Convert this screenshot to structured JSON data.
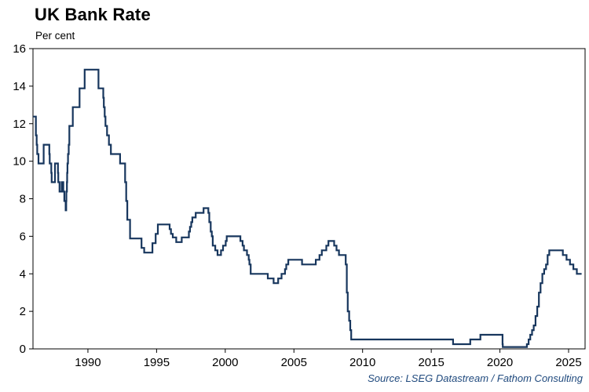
{
  "header": {
    "title": "UK Bank Rate",
    "subtitle": "Per cent"
  },
  "footer": {
    "source": "Source: LSEG Datastream / Fathom Consulting"
  },
  "colors": {
    "line": "#17365D",
    "axis": "#000000",
    "tick_label": "#000000",
    "source_text": "#1F497D",
    "background": "#FFFFFF"
  },
  "chart_data": {
    "type": "line",
    "title": "UK Bank Rate",
    "subtitle": "Per cent",
    "xlabel": "",
    "ylabel": "Per cent",
    "source": "Source: LSEG Datastream / Fathom Consulting",
    "grid": false,
    "legend": "none",
    "step": true,
    "xlim": [
      1986.0,
      2026.2
    ],
    "ylim": [
      0,
      16
    ],
    "yticks": [
      0,
      2,
      4,
      6,
      8,
      10,
      12,
      14,
      16
    ],
    "xticks": [
      1990,
      1995,
      2000,
      2005,
      2010,
      2015,
      2020,
      2025
    ],
    "x_end": 2025.95,
    "series": [
      {
        "name": "UK Bank Rate",
        "points": [
          [
            1986.0,
            12.38
          ],
          [
            1986.21,
            11.38
          ],
          [
            1986.27,
            10.88
          ],
          [
            1986.31,
            10.38
          ],
          [
            1986.4,
            9.88
          ],
          [
            1986.78,
            10.88
          ],
          [
            1987.19,
            10.38
          ],
          [
            1987.22,
            9.88
          ],
          [
            1987.33,
            9.38
          ],
          [
            1987.36,
            8.88
          ],
          [
            1987.6,
            9.88
          ],
          [
            1987.82,
            9.38
          ],
          [
            1987.84,
            8.88
          ],
          [
            1987.93,
            8.38
          ],
          [
            1988.09,
            8.88
          ],
          [
            1988.21,
            8.38
          ],
          [
            1988.28,
            7.88
          ],
          [
            1988.38,
            7.38
          ],
          [
            1988.42,
            7.88
          ],
          [
            1988.43,
            8.38
          ],
          [
            1988.47,
            8.88
          ],
          [
            1988.49,
            9.38
          ],
          [
            1988.51,
            9.88
          ],
          [
            1988.55,
            10.38
          ],
          [
            1988.6,
            10.88
          ],
          [
            1988.65,
            11.88
          ],
          [
            1988.9,
            12.88
          ],
          [
            1989.39,
            13.88
          ],
          [
            1989.76,
            14.88
          ],
          [
            1990.77,
            13.88
          ],
          [
            1991.12,
            13.38
          ],
          [
            1991.16,
            12.88
          ],
          [
            1991.22,
            12.38
          ],
          [
            1991.28,
            11.88
          ],
          [
            1991.39,
            11.38
          ],
          [
            1991.53,
            10.88
          ],
          [
            1991.67,
            10.38
          ],
          [
            1992.34,
            9.88
          ],
          [
            1992.71,
            8.88
          ],
          [
            1992.79,
            7.88
          ],
          [
            1992.87,
            6.88
          ],
          [
            1993.07,
            5.88
          ],
          [
            1993.9,
            5.38
          ],
          [
            1994.1,
            5.13
          ],
          [
            1994.7,
            5.63
          ],
          [
            1994.93,
            6.13
          ],
          [
            1995.09,
            6.63
          ],
          [
            1995.95,
            6.38
          ],
          [
            1996.05,
            6.13
          ],
          [
            1996.18,
            5.94
          ],
          [
            1996.43,
            5.69
          ],
          [
            1996.83,
            5.94
          ],
          [
            1997.35,
            6.25
          ],
          [
            1997.43,
            6.5
          ],
          [
            1997.52,
            6.75
          ],
          [
            1997.6,
            7.0
          ],
          [
            1997.85,
            7.25
          ],
          [
            1998.42,
            7.5
          ],
          [
            1998.77,
            7.25
          ],
          [
            1998.84,
            6.75
          ],
          [
            1998.94,
            6.25
          ],
          [
            1999.02,
            6.0
          ],
          [
            1999.09,
            5.5
          ],
          [
            1999.27,
            5.25
          ],
          [
            1999.44,
            5.0
          ],
          [
            1999.69,
            5.25
          ],
          [
            1999.84,
            5.5
          ],
          [
            2000.03,
            5.75
          ],
          [
            2000.11,
            6.0
          ],
          [
            2001.1,
            5.75
          ],
          [
            2001.26,
            5.5
          ],
          [
            2001.36,
            5.25
          ],
          [
            2001.58,
            5.0
          ],
          [
            2001.71,
            4.75
          ],
          [
            2001.76,
            4.5
          ],
          [
            2001.85,
            4.0
          ],
          [
            2003.1,
            3.75
          ],
          [
            2003.52,
            3.5
          ],
          [
            2003.85,
            3.75
          ],
          [
            2004.1,
            4.0
          ],
          [
            2004.35,
            4.25
          ],
          [
            2004.44,
            4.5
          ],
          [
            2004.59,
            4.75
          ],
          [
            2005.59,
            4.5
          ],
          [
            2006.59,
            4.75
          ],
          [
            2006.86,
            5.0
          ],
          [
            2007.03,
            5.25
          ],
          [
            2007.36,
            5.5
          ],
          [
            2007.51,
            5.75
          ],
          [
            2007.93,
            5.5
          ],
          [
            2008.1,
            5.25
          ],
          [
            2008.28,
            5.0
          ],
          [
            2008.77,
            4.5
          ],
          [
            2008.85,
            3.0
          ],
          [
            2008.92,
            2.0
          ],
          [
            2009.02,
            1.5
          ],
          [
            2009.1,
            1.0
          ],
          [
            2009.17,
            0.5
          ],
          [
            2016.59,
            0.25
          ],
          [
            2017.84,
            0.5
          ],
          [
            2018.58,
            0.75
          ],
          [
            2020.19,
            0.25
          ],
          [
            2020.21,
            0.1
          ],
          [
            2021.96,
            0.25
          ],
          [
            2022.09,
            0.5
          ],
          [
            2022.21,
            0.75
          ],
          [
            2022.34,
            1.0
          ],
          [
            2022.46,
            1.25
          ],
          [
            2022.59,
            1.75
          ],
          [
            2022.72,
            2.25
          ],
          [
            2022.84,
            3.0
          ],
          [
            2022.96,
            3.5
          ],
          [
            2023.09,
            4.0
          ],
          [
            2023.22,
            4.25
          ],
          [
            2023.36,
            4.5
          ],
          [
            2023.47,
            5.0
          ],
          [
            2023.59,
            5.25
          ],
          [
            2024.58,
            5.0
          ],
          [
            2024.85,
            4.75
          ],
          [
            2025.1,
            4.5
          ],
          [
            2025.35,
            4.25
          ],
          [
            2025.6,
            4.0
          ]
        ]
      }
    ]
  }
}
